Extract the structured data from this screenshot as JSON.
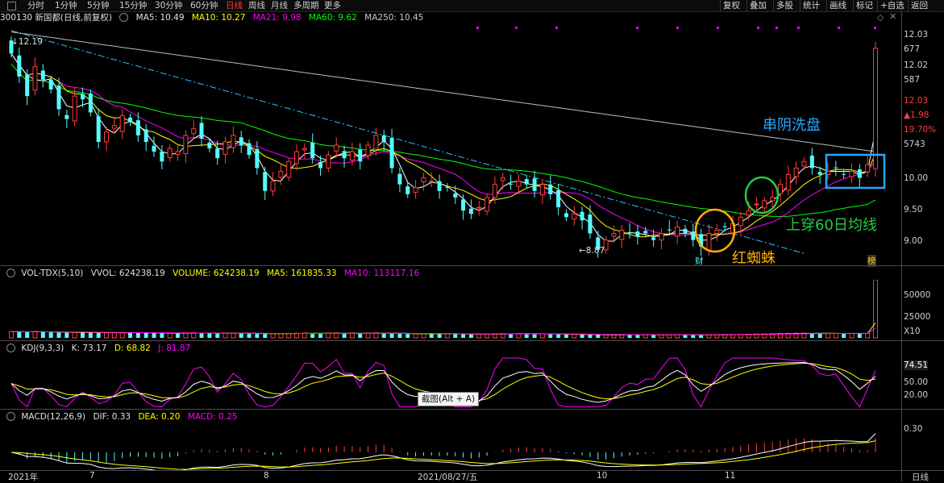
{
  "toolbar": {
    "periods": [
      "分时",
      "1分钟",
      "5分钟",
      "15分钟",
      "30分钟",
      "60分钟",
      "日线",
      "周线",
      "月线",
      "多周期",
      "更多"
    ],
    "active_period": "日线",
    "tools": [
      "复权",
      "叠加",
      "多股",
      "统计",
      "画线",
      "标记",
      "+自选",
      "返回"
    ]
  },
  "main": {
    "header": {
      "stock": "300130 新国都(日线,前复权)",
      "ma5": "MA5: 10.49",
      "ma10": "MA10: 10.27",
      "ma21": "MA21: 9.98",
      "ma60": "MA60: 9.62",
      "ma250": "MA250: 10.45"
    },
    "price_axis": [
      "12.03",
      "677",
      "12.02",
      "587",
      "12.03",
      "▲1.98",
      "19.70%",
      "5743",
      "10.00",
      "9.50",
      "9.00"
    ],
    "high_label": "12.19",
    "low_label": "←8.87",
    "marker_cai": "财",
    "marker_bang": "榜",
    "annotations": {
      "a1": "串阴洗盘",
      "a2": "上穿60日均线",
      "a3": "红蜘蛛"
    }
  },
  "volume": {
    "header": {
      "name": "VOL-TDX(5,10)",
      "vvol": "VVOL: 624238.19",
      "volume": "VOLUME: 624238.19",
      "ma5": "MA5: 161835.33",
      "ma10": "MA10: 113117.16"
    },
    "axis": [
      "50000",
      "25000",
      "X10"
    ]
  },
  "kdj": {
    "header": {
      "name": "KDJ(9,3,3)",
      "k": "K: 73.17",
      "d": "D: 68.82",
      "j": "J: 81.87"
    },
    "axis": [
      "74.51",
      "50.00",
      "20.00"
    ]
  },
  "macd": {
    "header": {
      "name": "MACD(12,26,9)",
      "dif": "DIF: 0.33",
      "dea": "DEA: 0.20",
      "macd": "MACD: 0.25"
    },
    "axis": [
      "0.30"
    ]
  },
  "tooltip": "截图(Alt + A)",
  "date_axis": [
    "2021年",
    "7",
    "8",
    "2021/08/27/五",
    "10",
    "11",
    "日线"
  ],
  "colors": {
    "up": "#ff3c3c",
    "down": "#54ffff",
    "ma5": "#ffffff",
    "ma10": "#ffff00",
    "ma21": "#ff00ff",
    "ma60": "#00ff00",
    "ma250": "#bcbcbc"
  },
  "chart_data": {
    "type": "candlestick",
    "title": "300130 新国都(日线,前复权)",
    "ylim": [
      8.8,
      12.3
    ],
    "y_ticks": [
      12.03,
      12.02,
      10.0,
      9.5,
      9.0
    ],
    "x_ticks": [
      "2021年",
      "7",
      "8",
      "2021/08/27/五",
      "10",
      "11"
    ],
    "series": [
      {
        "name": "MA5",
        "last": 10.49
      },
      {
        "name": "MA10",
        "last": 10.27
      },
      {
        "name": "MA21",
        "last": 9.98
      },
      {
        "name": "MA60",
        "last": 9.62
      },
      {
        "name": "MA250",
        "last": 10.45
      }
    ],
    "close": [
      11.95,
      11.6,
      11.3,
      11.75,
      11.55,
      11.4,
      11.1,
      10.95,
      11.3,
      11.25,
      11.05,
      10.6,
      10.75,
      10.85,
      11.0,
      10.9,
      10.7,
      10.6,
      10.45,
      10.3,
      10.5,
      10.45,
      10.7,
      10.8,
      10.65,
      10.5,
      10.35,
      10.6,
      10.7,
      10.55,
      10.4,
      10.2,
      9.85,
      10.0,
      10.15,
      10.3,
      10.45,
      10.5,
      10.35,
      10.2,
      10.4,
      10.55,
      10.35,
      10.45,
      10.3,
      10.55,
      10.7,
      10.6,
      10.2,
      9.95,
      9.8,
      9.9,
      10.05,
      10.0,
      9.85,
      9.9,
      9.75,
      9.55,
      9.5,
      9.6,
      9.75,
      9.95,
      10.05,
      9.95,
      10.0,
      9.95,
      9.85,
      9.95,
      9.8,
      9.6,
      9.45,
      9.5,
      9.4,
      9.2,
      8.95,
      9.1,
      9.2,
      9.25,
      9.2,
      9.15,
      9.2,
      9.1,
      9.2,
      9.25,
      9.3,
      9.2,
      9.1,
      9.0,
      9.2,
      9.25,
      9.3,
      9.35,
      9.45,
      9.55,
      9.65,
      9.7,
      9.75,
      9.95,
      10.1,
      10.2,
      10.3,
      10.2,
      10.1,
      10.15,
      10.2,
      10.1,
      10.15,
      10.05,
      10.25,
      12.03
    ],
    "ohlc_note": "open/high/low derived visually from the chart",
    "volume": [
      6800,
      6500,
      6200,
      7000,
      6400,
      6000,
      5800,
      5600,
      6100,
      5900,
      5700,
      5300,
      5500,
      5600,
      5800,
      5700,
      5400,
      5200,
      5000,
      4800,
      5100,
      5000,
      5300,
      5500,
      5200,
      5000,
      4700,
      5100,
      5200,
      4900,
      4700,
      4500,
      4300,
      4500,
      4700,
      4900,
      5100,
      5200,
      4900,
      4700,
      5000,
      5300,
      4900,
      5000,
      4800,
      5200,
      5400,
      5200,
      4700,
      4400,
      4200,
      4300,
      4600,
      4500,
      4300,
      4400,
      4200,
      3900,
      3800,
      3900,
      4100,
      4400,
      4600,
      4400,
      4500,
      4400,
      4200,
      4300,
      4100,
      3800,
      3600,
      3700,
      3500,
      3300,
      3100,
      3300,
      3400,
      3500,
      3400,
      3300,
      3400,
      3200,
      3300,
      3400,
      3500,
      3400,
      3200,
      3100,
      3300,
      3400,
      3600,
      3700,
      3800,
      3900,
      4100,
      4200,
      4300,
      4600,
      4800,
      5000,
      5100,
      4900,
      4700,
      4800,
      4900,
      4700,
      4800,
      4600,
      4900,
      62424
    ],
    "volume_note": "relative bar heights (×10)",
    "kdj": {
      "K": 73.17,
      "D": 68.82,
      "J": 81.87
    },
    "macd": {
      "DIF": 0.33,
      "DEA": 0.2,
      "MACD": 0.25
    }
  }
}
